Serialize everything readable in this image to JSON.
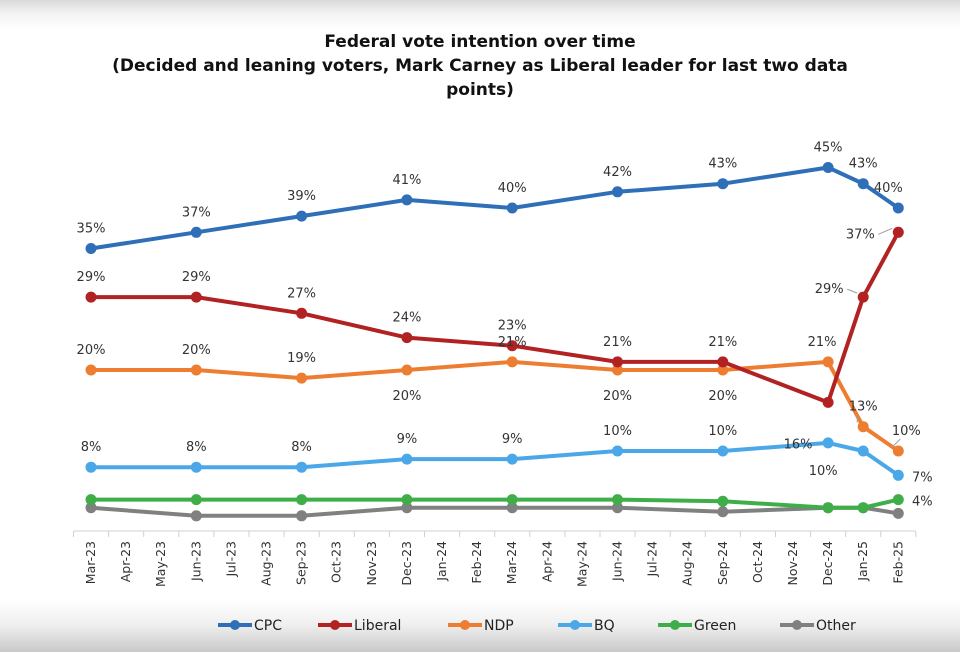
{
  "chart_data": {
    "type": "line",
    "title": "Federal vote intention over time",
    "subtitle_lines": [
      "(Decided and leaning voters, Mark Carney as Liberal leader for last two data",
      "points)"
    ],
    "xlabel": "",
    "ylabel": "",
    "ylim": [
      0,
      50
    ],
    "grid": false,
    "legend_position": "bottom",
    "x_ticks": [
      "Mar-23",
      "Apr-23",
      "May-23",
      "Jun-23",
      "Jul-23",
      "Aug-23",
      "Sep-23",
      "Oct-23",
      "Nov-23",
      "Dec-23",
      "Jan-24",
      "Feb-24",
      "Mar-24",
      "Apr-24",
      "May-24",
      "Jun-24",
      "Jul-24",
      "Aug-24",
      "Sep-24",
      "Oct-24",
      "Nov-24",
      "Dec-24",
      "Jan-25",
      "Feb-25"
    ],
    "x": [
      "Mar-23",
      "Jun-23",
      "Sep-23",
      "Dec-23",
      "Mar-24",
      "Jun-24",
      "Sep-24",
      "Dec-24",
      "Jan-25",
      "Feb-25"
    ],
    "series": [
      {
        "name": "CPC",
        "color": "#2e6fb7",
        "values": [
          35,
          37,
          39,
          41,
          40,
          42,
          43,
          45,
          43,
          40
        ],
        "labels": [
          "35%",
          "37%",
          "39%",
          "41%",
          "40%",
          "42%",
          "43%",
          "45%",
          "43%",
          "40%"
        ]
      },
      {
        "name": "Liberal",
        "color": "#b22222",
        "values": [
          29,
          29,
          27,
          24,
          23,
          21,
          21,
          16,
          29,
          37
        ],
        "labels": [
          "29%",
          "29%",
          "27%",
          "24%",
          "23%",
          "21%",
          "21%",
          "16%",
          "29%",
          "37%"
        ]
      },
      {
        "name": "NDP",
        "color": "#ed7d31",
        "values": [
          20,
          20,
          19,
          20,
          21,
          20,
          20,
          21,
          13,
          10
        ],
        "labels": [
          "20%",
          "20%",
          "19%",
          "20%",
          "21%",
          "20%",
          "20%",
          "21%",
          "13%",
          "10%"
        ]
      },
      {
        "name": "BQ",
        "color": "#4aa8e8",
        "values": [
          8,
          8,
          8,
          9,
          9,
          10,
          10,
          11,
          10,
          7
        ],
        "labels": [
          "8%",
          "8%",
          "8%",
          "9%",
          "9%",
          "10%",
          "10%",
          "",
          "10%",
          "7%"
        ]
      },
      {
        "name": "Green",
        "color": "#3fae49",
        "values": [
          4,
          4,
          4,
          4,
          4,
          4,
          3.8,
          3,
          3,
          4
        ],
        "labels": [
          "",
          "",
          "",
          "",
          "",
          "",
          "",
          "",
          "",
          "4%"
        ]
      },
      {
        "name": "Other",
        "color": "#808080",
        "values": [
          3,
          2,
          2,
          3,
          3,
          3,
          2.5,
          3,
          3,
          2.3
        ],
        "labels": [
          "",
          "",
          "",
          "",
          "",
          "",
          "",
          "",
          "",
          ""
        ]
      }
    ]
  }
}
